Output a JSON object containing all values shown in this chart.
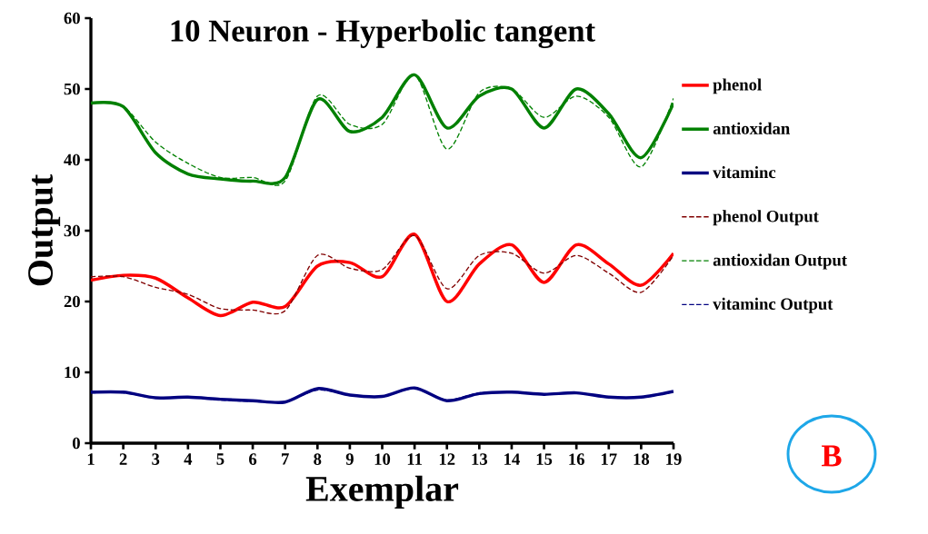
{
  "chart_data": {
    "type": "line",
    "title": "10 Neuron - Hyperbolic tangent",
    "xlabel": "Exemplar",
    "ylabel": "Output",
    "x": [
      1,
      2,
      3,
      4,
      5,
      6,
      7,
      8,
      9,
      10,
      11,
      12,
      13,
      14,
      15,
      16,
      17,
      18,
      19
    ],
    "xlim": [
      1,
      19
    ],
    "xticks": [
      1,
      2,
      3,
      4,
      5,
      6,
      7,
      8,
      9,
      10,
      11,
      12,
      13,
      14,
      15,
      16,
      17,
      18,
      19
    ],
    "ylim": [
      0,
      60
    ],
    "yticks": [
      0,
      10,
      20,
      30,
      40,
      50,
      60
    ],
    "grid": false,
    "legend": "right",
    "marker": "none",
    "annotations": [
      "B"
    ],
    "series": [
      {
        "name": "phenol",
        "color": "#ff0000",
        "line_style": "solid",
        "values": [
          23,
          23.7,
          23.3,
          20.5,
          18,
          19.9,
          19.3,
          25,
          25.5,
          23.5,
          29.5,
          20,
          25.3,
          28,
          22.7,
          28,
          25.3,
          22.3,
          26.8
        ]
      },
      {
        "name": "antioxidan",
        "color": "#008000",
        "line_style": "solid",
        "values": [
          48,
          47.5,
          41,
          38,
          37.3,
          37,
          37.5,
          48.5,
          44,
          46,
          52,
          44.5,
          49,
          50,
          44.5,
          50,
          46.5,
          40.3,
          48
        ]
      },
      {
        "name": "vitaminc",
        "color": "#000080",
        "line_style": "solid",
        "values": [
          7.2,
          7.2,
          6.4,
          6.5,
          6.2,
          6.0,
          5.8,
          7.7,
          6.8,
          6.6,
          7.8,
          6.0,
          7.0,
          7.2,
          6.9,
          7.1,
          6.5,
          6.5,
          7.3
        ]
      },
      {
        "name": "phenol Output",
        "color": "#800000",
        "line_style": "dashed",
        "values": [
          23.5,
          23.5,
          22,
          21,
          19,
          18.8,
          18.7,
          26.5,
          24.7,
          24.5,
          29.3,
          21.8,
          26.5,
          26.8,
          24,
          26.5,
          24,
          21.3,
          26.5
        ]
      },
      {
        "name": "antioxidan Output",
        "color": "#008000",
        "line_style": "dashed",
        "values": [
          48,
          47.5,
          42.5,
          39.5,
          37.5,
          37.5,
          37,
          49,
          45,
          45,
          52,
          41.5,
          49.5,
          50,
          46,
          49,
          46,
          39,
          48.7
        ]
      },
      {
        "name": "vitaminc Output",
        "color": "#000080",
        "line_style": "dashed",
        "values": [
          7.1,
          7.1,
          6.4,
          6.5,
          6.1,
          5.9,
          5.8,
          7.5,
          6.8,
          6.6,
          7.7,
          6.1,
          7.1,
          7.2,
          6.9,
          7.1,
          6.5,
          6.5,
          7.2
        ]
      }
    ]
  }
}
